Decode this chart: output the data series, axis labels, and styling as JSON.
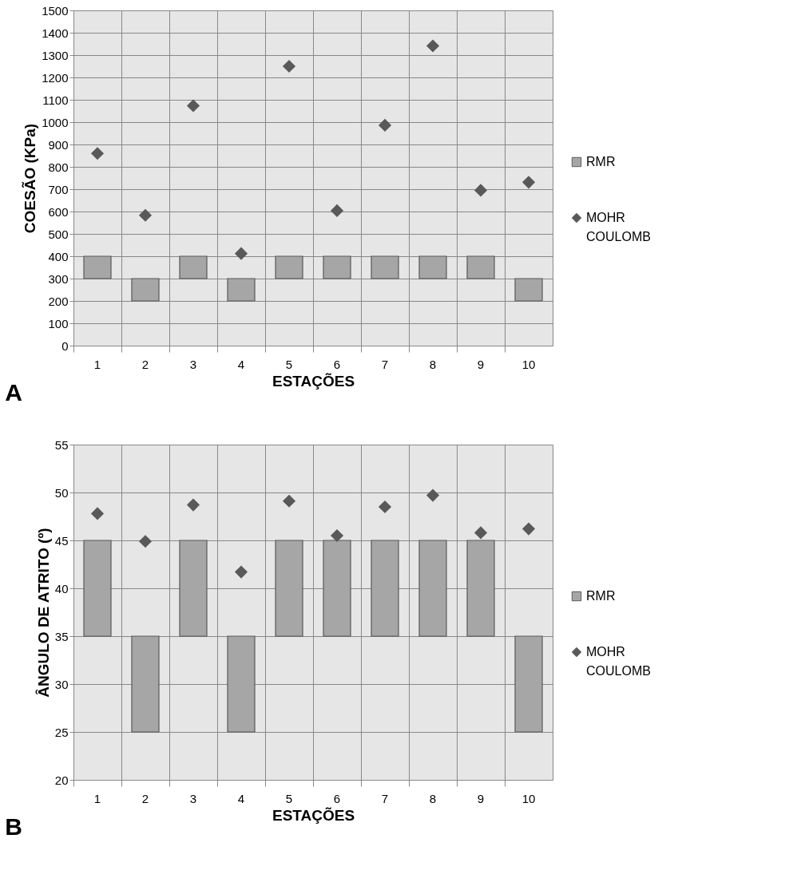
{
  "chart_data": [
    {
      "type": "bar",
      "categories": [
        "1",
        "2",
        "3",
        "4",
        "5",
        "6",
        "7",
        "8",
        "9",
        "10"
      ],
      "xlabel": "ESTAÇÕES",
      "ylabel": "COESÃO (KPa)",
      "ylim": [
        0,
        1500
      ],
      "yticks": [
        0,
        100,
        200,
        300,
        400,
        500,
        600,
        700,
        800,
        900,
        1000,
        1100,
        1200,
        1300,
        1400,
        1500
      ],
      "grid": true,
      "legend": "right",
      "annotations": [
        "A"
      ],
      "series": [
        {
          "name": "RMR",
          "color": "#a6a6a6",
          "base": [
            300,
            200,
            300,
            200,
            300,
            300,
            300,
            300,
            300,
            200
          ],
          "values": [
            100,
            100,
            100,
            100,
            100,
            100,
            100,
            100,
            100,
            100
          ]
        },
        {
          "name": "MOHR COULOMB",
          "type": "scatter",
          "marker": "diamond",
          "color": "#595959",
          "values": [
            860,
            583,
            1073,
            412,
            1250,
            604,
            986,
            1341,
            695,
            731
          ]
        }
      ]
    },
    {
      "type": "bar",
      "categories": [
        "1",
        "2",
        "3",
        "4",
        "5",
        "6",
        "7",
        "8",
        "9",
        "10"
      ],
      "xlabel": "ESTAÇÕES",
      "ylabel": "ÂNGULO DE ATRITO (º)",
      "ylim": [
        20,
        55
      ],
      "yticks": [
        20,
        25,
        30,
        35,
        40,
        45,
        50,
        55
      ],
      "grid": true,
      "legend": "right",
      "annotations": [
        "B"
      ],
      "series": [
        {
          "name": "RMR",
          "color": "#a6a6a6",
          "base": [
            35,
            25,
            35,
            25,
            35,
            35,
            35,
            35,
            35,
            25
          ],
          "values": [
            10,
            10,
            10,
            10,
            10,
            10,
            10,
            10,
            10,
            10
          ]
        },
        {
          "name": "MOHR COULOMB",
          "type": "scatter",
          "marker": "diamond",
          "color": "#595959",
          "values": [
            47.8,
            44.9,
            48.7,
            41.7,
            49.1,
            45.5,
            48.5,
            49.7,
            45.8,
            46.2
          ]
        }
      ]
    }
  ]
}
